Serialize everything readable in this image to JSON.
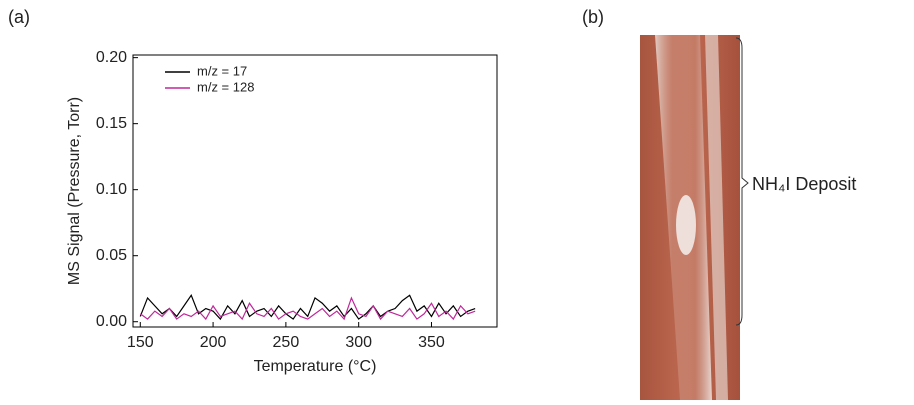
{
  "panel_labels": [
    "(a)",
    "(b)"
  ],
  "chart_data": {
    "type": "line",
    "xlabel": "Temperature (°C)",
    "ylabel": "MS Signal (Pressure, Torr)",
    "x": [
      150,
      155,
      160,
      165,
      170,
      175,
      180,
      185,
      190,
      195,
      200,
      205,
      210,
      215,
      220,
      225,
      230,
      235,
      240,
      245,
      250,
      255,
      260,
      265,
      270,
      275,
      280,
      285,
      290,
      295,
      300,
      305,
      310,
      315,
      320,
      325,
      330,
      335,
      340,
      345,
      350,
      355,
      360,
      365,
      370,
      375,
      380
    ],
    "series": [
      {
        "name": "m/z = 17",
        "color": "#000000",
        "values": [
          0.004,
          0.018,
          0.012,
          0.006,
          0.01,
          0.004,
          0.012,
          0.02,
          0.006,
          0.01,
          0.008,
          0.002,
          0.012,
          0.006,
          0.016,
          0.004,
          0.008,
          0.01,
          0.004,
          0.012,
          0.006,
          0.002,
          0.01,
          0.004,
          0.018,
          0.014,
          0.008,
          0.012,
          0.004,
          0.01,
          0.002,
          0.006,
          0.012,
          0.004,
          0.008,
          0.01,
          0.016,
          0.02,
          0.008,
          0.012,
          0.004,
          0.014,
          0.006,
          0.012,
          0.004,
          0.008,
          0.01
        ]
      },
      {
        "name": "m/z = 128",
        "color": "#c0279a",
        "values": [
          0.006,
          0.002,
          0.008,
          0.004,
          0.01,
          0.002,
          0.006,
          0.004,
          0.008,
          0.002,
          0.012,
          0.004,
          0.006,
          0.008,
          0.002,
          0.014,
          0.006,
          0.004,
          0.01,
          0.002,
          0.006,
          0.008,
          0.004,
          0.002,
          0.006,
          0.01,
          0.004,
          0.008,
          0.002,
          0.018,
          0.006,
          0.004,
          0.012,
          0.002,
          0.008,
          0.006,
          0.004,
          0.01,
          0.002,
          0.006,
          0.014,
          0.004,
          0.008,
          0.002,
          0.012,
          0.006,
          0.008
        ]
      }
    ],
    "xlim": [
      145,
      395
    ],
    "xticks": [
      150,
      200,
      250,
      300,
      350
    ],
    "ylim": [
      -0.004,
      0.202
    ],
    "yticks": [
      {
        "value": 0,
        "label": "0.00"
      },
      {
        "value": 0.05,
        "label": "0.05"
      },
      {
        "value": 0.1,
        "label": "0.10"
      },
      {
        "value": 0.15,
        "label": "0.15"
      },
      {
        "value": 0.2,
        "label": "0.20"
      }
    ],
    "legend": "upper left"
  },
  "photo": {
    "annotation": "NH₄I Deposit"
  }
}
